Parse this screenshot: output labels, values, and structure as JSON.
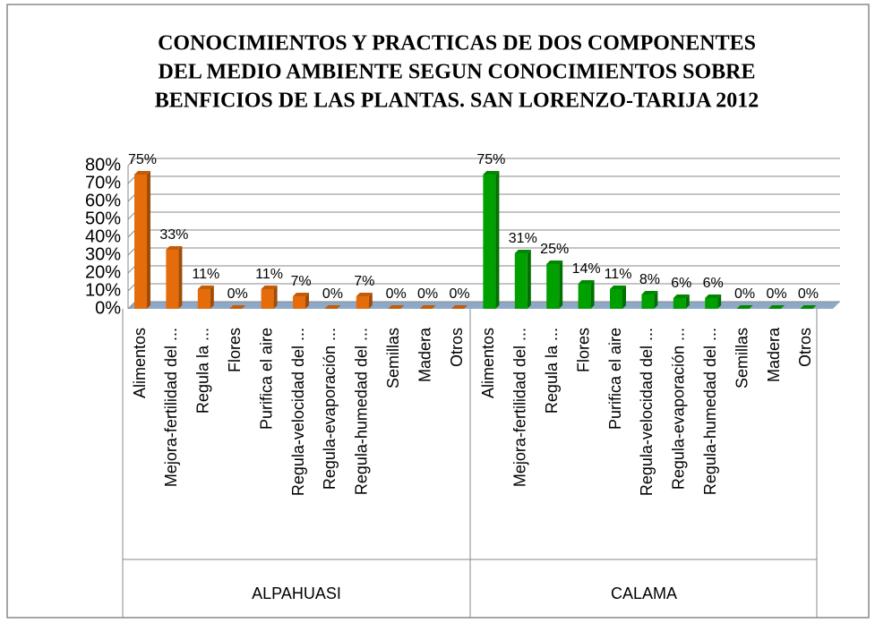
{
  "chart_data": {
    "type": "bar",
    "title": [
      "CONOCIMIENTOS  Y PRACTICAS DE DOS COMPONENTES",
      "DEL MEDIO AMBIENTE SEGUN CONOCIMIENTOS SOBRE",
      "BENFICIOS DE LAS PLANTAS. SAN LORENZO-TARIJA 2012"
    ],
    "categories": [
      "Alimentos",
      "Mejora-fertilidad del ...",
      "Regula la ...",
      "Flores",
      "Purifica el aire",
      "Regula-velocidad del ...",
      "Regula-evaporación ...",
      "Regula-humedad del ...",
      "Semillas",
      "Madera",
      "Otros"
    ],
    "series": [
      {
        "name": "ALPAHUASI",
        "color": "#e46c0a",
        "values": [
          75,
          33,
          11,
          0,
          11,
          7,
          0,
          7,
          0,
          0,
          0
        ],
        "value_labels": [
          "75%",
          "33%",
          "11%",
          "0%",
          "11%",
          "7%",
          "0%",
          "7%",
          "0%",
          "0%",
          "0%"
        ]
      },
      {
        "name": "CALAMA",
        "color": "#00a000",
        "values": [
          75,
          31,
          25,
          14,
          11,
          8,
          6,
          6,
          0,
          0,
          0
        ],
        "value_labels": [
          "75%",
          "31%",
          "25%",
          "14%",
          "11%",
          "8%",
          "6%",
          "6%",
          "0%",
          "0%",
          "0%"
        ]
      }
    ],
    "ylim": [
      0,
      80
    ],
    "yticks": [
      {
        "value": 0,
        "label": "0%"
      },
      {
        "value": 10,
        "label": "10%"
      },
      {
        "value": 20,
        "label": "20%"
      },
      {
        "value": 30,
        "label": "30%"
      },
      {
        "value": 40,
        "label": "40%"
      },
      {
        "value": 50,
        "label": "50%"
      },
      {
        "value": 60,
        "label": "60%"
      },
      {
        "value": 70,
        "label": "70%"
      },
      {
        "value": 80,
        "label": "80%"
      }
    ],
    "grid": true
  }
}
